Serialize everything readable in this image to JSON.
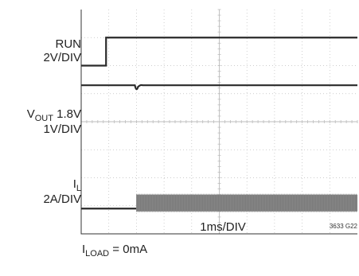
{
  "chart_data": {
    "type": "line",
    "title": "",
    "xlabel": "1ms/DIV",
    "grid": true,
    "divisions": {
      "x": 10,
      "y": 8
    },
    "channels": [
      {
        "id": "run",
        "label": "RUN",
        "scale": "2V/DIV",
        "level_low_div": 2.0,
        "level_high_div": 1.0,
        "step_time_div": 0.9
      },
      {
        "id": "vout",
        "label_prefix": "V",
        "label_sub": "OUT",
        "label_suffix": " 1.8V",
        "scale": "1V/DIV",
        "level_div": 2.7,
        "dip_time_div": 2.0
      },
      {
        "id": "il",
        "label_prefix": "I",
        "label_sub": "L",
        "scale": "2A/DIV",
        "baseline_div": 7.1,
        "ripple_start_div": 2.0,
        "ripple_top_div": 6.6,
        "ripple_bottom_div": 7.2
      }
    ],
    "colors": {
      "trace": "#2a2a2a",
      "ripple": "#7a7a7a",
      "grid": "#bdbdbd",
      "frame": "#333333"
    }
  },
  "figure_id": "3633 G22",
  "condition": {
    "prefix": "I",
    "sub": "LOAD",
    "suffix": " = 0mA"
  }
}
